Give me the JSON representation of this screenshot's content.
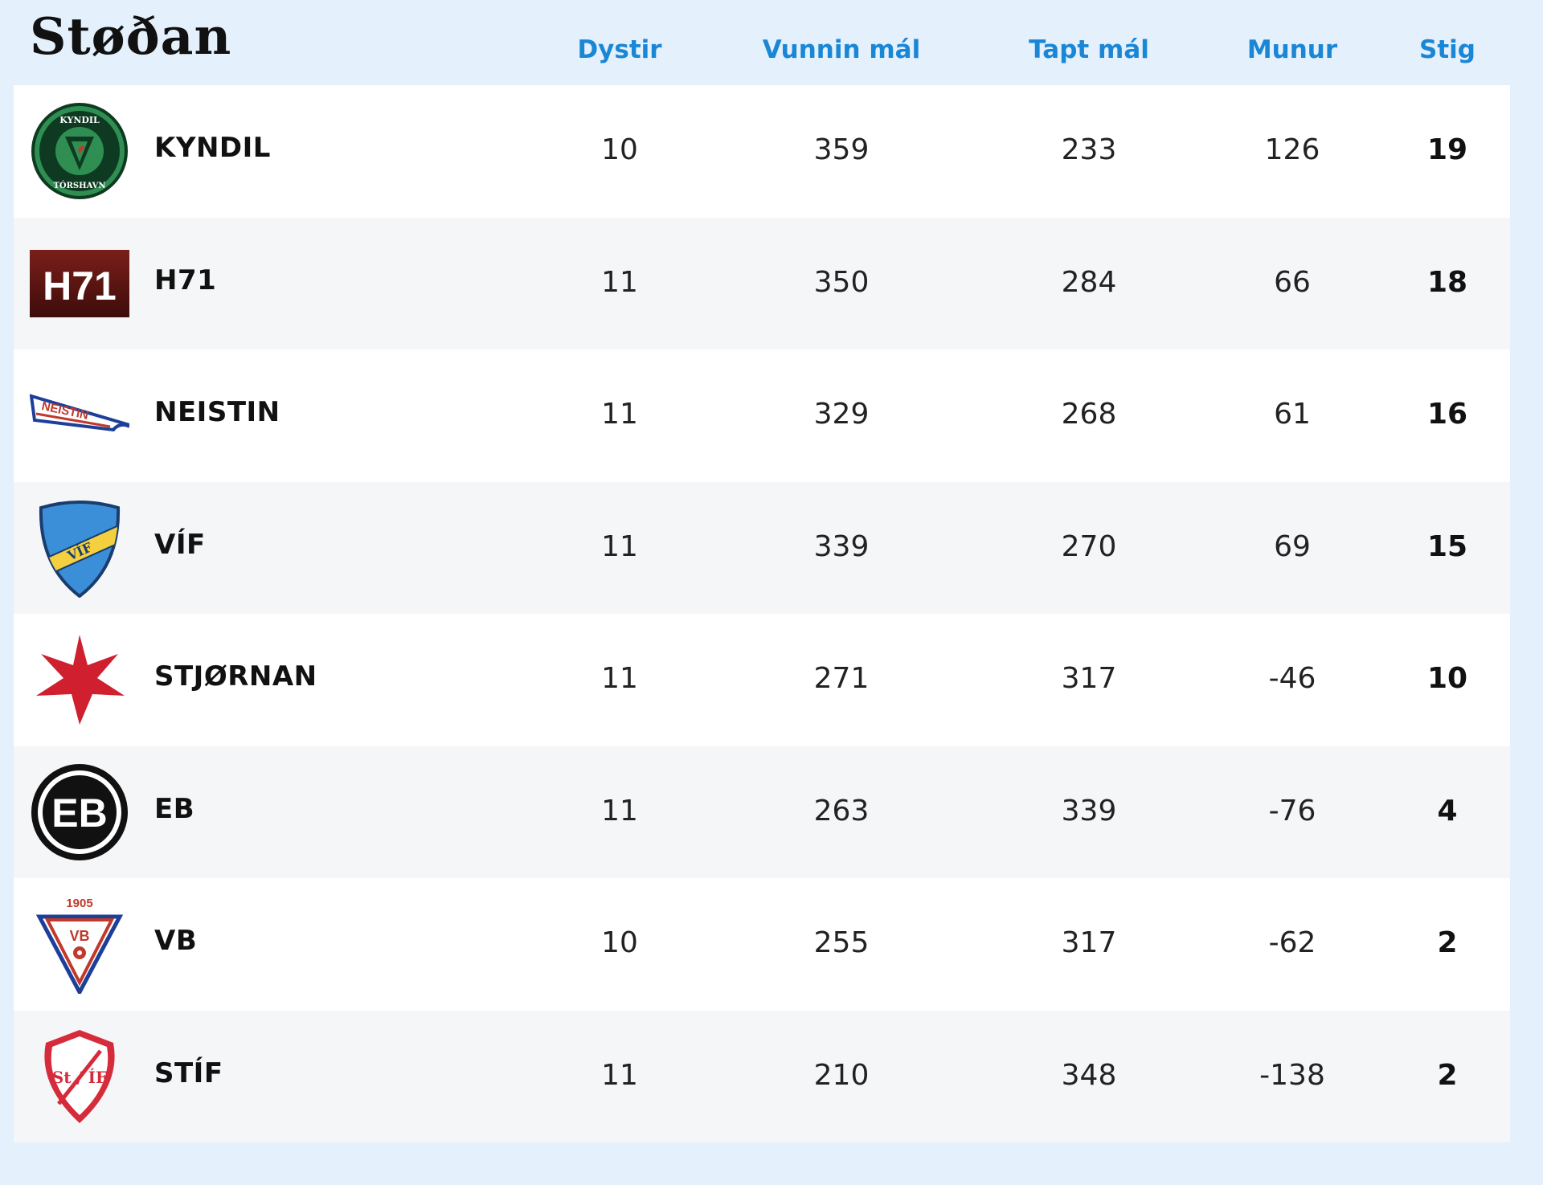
{
  "title": "Støðan",
  "columns": {
    "played": "Dystir",
    "won": "Vunnin mál",
    "lost": "Tapt mál",
    "diff": "Munur",
    "points": "Stig"
  },
  "rows": [
    {
      "team": "KYNDIL",
      "played": "10",
      "won": "359",
      "lost": "233",
      "diff": "126",
      "points": "19",
      "logo": "kyndil-logo",
      "logo_text_top": "KYNDIL",
      "logo_text_bottom": "TÓRSHAVN"
    },
    {
      "team": "H71",
      "played": "11",
      "won": "350",
      "lost": "284",
      "diff": "66",
      "points": "18",
      "logo": "h71-logo",
      "logo_text": "H71"
    },
    {
      "team": "NEISTIN",
      "played": "11",
      "won": "329",
      "lost": "268",
      "diff": "61",
      "points": "16",
      "logo": "neistin-logo",
      "logo_text": "NEISTIN"
    },
    {
      "team": "VÍF",
      "played": "11",
      "won": "339",
      "lost": "270",
      "diff": "69",
      "points": "15",
      "logo": "vif-logo",
      "logo_text": "VÍF"
    },
    {
      "team": "STJØRNAN",
      "played": "11",
      "won": "271",
      "lost": "317",
      "diff": "-46",
      "points": "10",
      "logo": "stjornan-logo"
    },
    {
      "team": "EB",
      "played": "11",
      "won": "263",
      "lost": "339",
      "diff": "-76",
      "points": "4",
      "logo": "eb-logo",
      "logo_text": "EB"
    },
    {
      "team": "VB",
      "played": "10",
      "won": "255",
      "lost": "317",
      "diff": "-62",
      "points": "2",
      "logo": "vb-logo",
      "logo_text_top": "1905",
      "logo_text": "VB"
    },
    {
      "team": "STÍF",
      "played": "11",
      "won": "210",
      "lost": "348",
      "diff": "-138",
      "points": "2",
      "logo": "stif-logo",
      "logo_text": "St / ÍF"
    }
  ],
  "colors": {
    "header_accent": "#1a86d6",
    "page_background": "#e4f0fb",
    "row_alt": "#f5f6f8"
  }
}
